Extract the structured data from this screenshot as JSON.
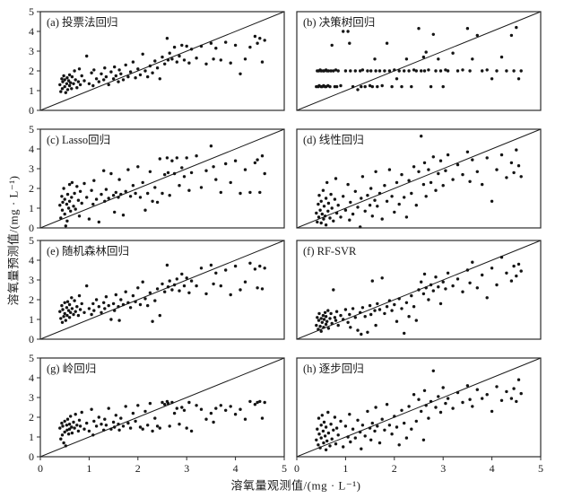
{
  "figure_title": "dissolved-oxygen-regression-comparison",
  "chart_data": {
    "type": "scatter",
    "grid": "4 rows x 2 cols",
    "xlabel": "溶氧量观测值/(mg · L⁻¹)",
    "ylabel": "溶氧量预测值/(mg · L⁻¹)",
    "xlim": [
      0,
      5
    ],
    "ylim": [
      0,
      5
    ],
    "xticks": [
      0,
      1,
      2,
      3,
      4,
      5
    ],
    "yticks": [
      0,
      1,
      2,
      3,
      4,
      5
    ],
    "grid_lines": false,
    "identity_line": true,
    "point_color": "#141414",
    "line_color": "#1a1a1a",
    "frame_color": "#2b2b2b",
    "x": [
      0.4,
      0.42,
      0.44,
      0.45,
      0.46,
      0.48,
      0.5,
      0.5,
      0.52,
      0.54,
      0.55,
      0.56,
      0.58,
      0.6,
      0.6,
      0.62,
      0.64,
      0.65,
      0.68,
      0.7,
      0.72,
      0.75,
      0.78,
      0.8,
      0.82,
      0.85,
      0.9,
      0.95,
      1.0,
      1.05,
      1.08,
      1.1,
      1.15,
      1.2,
      1.25,
      1.3,
      1.32,
      1.35,
      1.4,
      1.45,
      1.5,
      1.52,
      1.55,
      1.6,
      1.62,
      1.65,
      1.7,
      1.75,
      1.8,
      1.85,
      1.9,
      1.95,
      2.0,
      2.05,
      2.1,
      2.15,
      2.2,
      2.25,
      2.3,
      2.35,
      2.4,
      2.45,
      2.5,
      2.55,
      2.6,
      2.62,
      2.65,
      2.7,
      2.75,
      2.8,
      2.85,
      2.9,
      2.95,
      3.0,
      3.05,
      3.1,
      3.2,
      3.3,
      3.4,
      3.5,
      3.55,
      3.6,
      3.7,
      3.8,
      3.9,
      4.0,
      4.1,
      4.2,
      4.3,
      4.4,
      4.45,
      4.5,
      4.55,
      4.6
    ],
    "panels": [
      {
        "key": "a-voting",
        "label": "(a) 投票法回归",
        "y": [
          1.3,
          0.95,
          1.6,
          1.1,
          1.45,
          1.75,
          1.2,
          1.55,
          0.9,
          1.35,
          1.65,
          1.05,
          1.5,
          1.25,
          1.8,
          1.4,
          1.1,
          1.7,
          1.35,
          2.0,
          1.55,
          1.15,
          1.45,
          2.1,
          1.3,
          1.75,
          1.5,
          2.75,
          1.35,
          1.9,
          1.25,
          2.05,
          1.6,
          1.45,
          1.85,
          1.55,
          2.15,
          1.7,
          1.3,
          1.95,
          1.6,
          2.2,
          1.75,
          1.45,
          2.05,
          1.85,
          1.55,
          2.3,
          1.7,
          1.95,
          2.45,
          1.65,
          2.1,
          1.8,
          2.85,
          2.0,
          1.7,
          2.25,
          1.9,
          2.5,
          2.15,
          1.6,
          2.7,
          2.35,
          3.65,
          2.55,
          2.9,
          2.6,
          3.2,
          2.45,
          2.75,
          3.3,
          2.55,
          3.25,
          2.4,
          3.1,
          2.65,
          3.25,
          2.35,
          3.4,
          2.6,
          3.15,
          2.55,
          3.45,
          2.4,
          3.3,
          1.85,
          2.6,
          3.2,
          3.75,
          3.4,
          3.65,
          2.45,
          3.55
        ]
      },
      {
        "key": "b-decision-tree",
        "label": "(b) 决策树回归",
        "y": [
          1.2,
          2.0,
          1.2,
          2.0,
          1.25,
          2.05,
          1.2,
          2.0,
          1.2,
          2.0,
          1.25,
          2.0,
          1.2,
          2.05,
          1.2,
          2.0,
          1.25,
          2.0,
          1.2,
          2.0,
          3.3,
          2.0,
          1.2,
          2.05,
          1.2,
          2.0,
          1.25,
          4.0,
          2.0,
          4.0,
          3.4,
          2.0,
          1.2,
          2.0,
          1.05,
          2.0,
          1.2,
          2.05,
          1.2,
          2.0,
          1.25,
          2.0,
          1.2,
          2.6,
          2.0,
          1.2,
          2.0,
          1.25,
          2.0,
          3.4,
          2.0,
          1.2,
          2.05,
          1.6,
          2.0,
          1.2,
          2.0,
          2.6,
          2.0,
          1.2,
          2.05,
          2.0,
          4.15,
          2.0,
          2.7,
          2.0,
          2.95,
          2.05,
          1.2,
          3.85,
          2.0,
          2.6,
          2.0,
          1.2,
          2.05,
          2.0,
          2.9,
          2.0,
          2.05,
          4.15,
          2.0,
          2.6,
          3.8,
          2.0,
          2.05,
          1.6,
          2.0,
          2.7,
          2.0,
          3.8,
          2.0,
          4.2,
          1.6,
          2.0
        ]
      },
      {
        "key": "c-lasso",
        "label": "(c) Lasso回归",
        "y": [
          1.15,
          0.5,
          1.6,
          0.9,
          1.3,
          2.0,
          0.7,
          1.45,
          0.1,
          1.2,
          0.35,
          1.7,
          1.0,
          2.2,
          1.35,
          0.85,
          1.55,
          2.3,
          1.1,
          1.75,
          0.95,
          2.1,
          1.4,
          0.6,
          1.85,
          1.25,
          2.25,
          1.55,
          0.45,
          1.9,
          1.2,
          2.4,
          1.45,
          0.3,
          1.7,
          2.9,
          1.35,
          1.95,
          1.5,
          2.75,
          1.65,
          0.8,
          1.8,
          1.55,
          2.45,
          1.7,
          0.65,
          1.85,
          2.95,
          1.6,
          2.15,
          1.75,
          3.1,
          1.55,
          2.3,
          0.9,
          1.75,
          2.85,
          1.35,
          2.05,
          1.3,
          3.5,
          1.75,
          2.7,
          3.55,
          2.8,
          1.65,
          3.4,
          2.75,
          3.55,
          2.15,
          3.05,
          2.6,
          3.55,
          1.9,
          2.8,
          3.65,
          2.05,
          2.9,
          4.15,
          3.1,
          2.45,
          1.8,
          3.25,
          2.3,
          3.4,
          1.75,
          2.95,
          1.8,
          3.3,
          3.45,
          1.8,
          3.65,
          2.75
        ]
      },
      {
        "key": "d-linear",
        "label": "(d) 线性回归",
        "y": [
          0.75,
          0.3,
          1.2,
          0.55,
          1.65,
          0.9,
          0.25,
          1.35,
          0.7,
          1.9,
          0.45,
          1.1,
          0.6,
          1.5,
          0.15,
          2.3,
          0.85,
          1.25,
          0.5,
          1.7,
          1.0,
          0.35,
          1.45,
          2.5,
          0.75,
          1.15,
          0.55,
          1.6,
          0.9,
          2.2,
          0.4,
          1.3,
          0.7,
          1.85,
          1.05,
          0.05,
          1.5,
          2.6,
          0.85,
          1.65,
          1.15,
          2.0,
          0.6,
          1.4,
          2.85,
          1.1,
          1.75,
          0.45,
          2.15,
          1.35,
          2.95,
          1.6,
          0.8,
          2.3,
          1.2,
          2.7,
          1.55,
          0.55,
          2.4,
          1.75,
          3.1,
          1.15,
          2.85,
          4.65,
          2.2,
          3.3,
          1.6,
          2.95,
          2.3,
          3.6,
          1.9,
          2.75,
          3.4,
          2.15,
          2.9,
          3.7,
          2.45,
          3.2,
          2.7,
          3.85,
          2.35,
          3.45,
          2.85,
          2.2,
          3.55,
          1.35,
          2.95,
          3.7,
          2.55,
          3.3,
          2.8,
          3.95,
          3.15,
          2.6
        ]
      },
      {
        "key": "e-random-forest",
        "label": "(e) 随机森林回归",
        "y": [
          1.4,
          1.05,
          1.7,
          0.85,
          1.5,
          1.15,
          1.85,
          1.3,
          0.95,
          1.6,
          1.2,
          1.9,
          1.45,
          1.1,
          1.75,
          1.35,
          2.1,
          1.55,
          1.25,
          1.95,
          1.4,
          1.65,
          1.2,
          2.2,
          1.5,
          1.8,
          1.35,
          2.7,
          1.55,
          1.25,
          1.8,
          1.45,
          2.0,
          1.65,
          1.35,
          1.85,
          1.55,
          2.15,
          1.7,
          1.0,
          1.8,
          1.45,
          2.25,
          1.65,
          0.95,
          2.0,
          1.75,
          2.4,
          1.85,
          1.6,
          2.2,
          1.9,
          2.6,
          1.75,
          2.9,
          2.05,
          1.7,
          2.35,
          0.9,
          1.95,
          2.55,
          1.2,
          2.8,
          2.4,
          3.75,
          2.65,
          2.95,
          2.5,
          2.75,
          3.05,
          2.45,
          3.3,
          2.7,
          3.1,
          2.35,
          2.95,
          2.7,
          3.6,
          2.3,
          3.75,
          2.8,
          3.35,
          2.7,
          3.5,
          2.25,
          3.7,
          2.5,
          2.9,
          3.85,
          3.55,
          2.6,
          3.7,
          2.55,
          3.6
        ]
      },
      {
        "key": "f-rf-svr",
        "label": "(f) RF-SVR",
        "y": [
          0.7,
          1.1,
          0.5,
          0.95,
          1.3,
          0.65,
          1.05,
          0.4,
          0.85,
          1.2,
          0.6,
          1.0,
          1.35,
          0.75,
          1.15,
          0.9,
          1.45,
          0.55,
          1.05,
          1.3,
          0.8,
          2.5,
          1.1,
          0.95,
          1.4,
          0.7,
          1.2,
          1.0,
          1.5,
          0.85,
          1.25,
          0.6,
          1.55,
          1.1,
          0.45,
          1.35,
          0.25,
          1.6,
          1.15,
          0.35,
          1.7,
          1.25,
          2.95,
          1.45,
          0.7,
          1.8,
          1.5,
          3.1,
          1.3,
          1.65,
          1.95,
          1.45,
          1.75,
          0.9,
          2.05,
          1.55,
          0.3,
          1.85,
          1.15,
          2.2,
          1.65,
          0.95,
          2.5,
          2.9,
          2.3,
          3.3,
          2.6,
          2.0,
          2.75,
          2.45,
          3.15,
          2.65,
          1.8,
          2.9,
          2.55,
          3.35,
          2.7,
          3.05,
          2.4,
          3.5,
          2.85,
          3.9,
          2.6,
          3.25,
          2.1,
          3.6,
          2.75,
          4.15,
          3.35,
          2.95,
          3.7,
          3.2,
          3.8,
          3.45
        ]
      },
      {
        "key": "g-ridge",
        "label": "(g) 岭回归",
        "y": [
          1.45,
          0.9,
          1.7,
          1.1,
          1.55,
          0.7,
          1.8,
          1.25,
          0.55,
          1.6,
          1.35,
          1.9,
          1.15,
          1.65,
          1.4,
          2.05,
          1.5,
          1.2,
          1.75,
          1.45,
          2.15,
          1.6,
          1.3,
          1.85,
          1.55,
          2.25,
          1.4,
          1.7,
          1.3,
          2.4,
          1.1,
          1.8,
          1.55,
          2.0,
          1.65,
          1.35,
          1.9,
          1.6,
          2.45,
          1.4,
          1.75,
          1.5,
          2.1,
          1.65,
          1.35,
          1.95,
          1.55,
          2.55,
          1.7,
          1.45,
          2.2,
          1.8,
          2.6,
          1.5,
          1.4,
          2.3,
          1.6,
          2.7,
          1.3,
          1.95,
          1.55,
          1.45,
          2.75,
          2.65,
          2.8,
          2.7,
          1.55,
          2.75,
          2.2,
          2.45,
          1.65,
          2.5,
          2.35,
          1.45,
          2.75,
          1.3,
          2.6,
          2.4,
          1.9,
          2.2,
          1.75,
          2.45,
          2.6,
          2.35,
          2.55,
          2.15,
          2.4,
          1.9,
          2.8,
          2.65,
          2.75,
          2.8,
          1.95,
          2.75
        ]
      },
      {
        "key": "h-stepwise",
        "label": "(h) 逐步回归",
        "y": [
          0.85,
          1.4,
          0.6,
          1.95,
          1.15,
          0.45,
          1.6,
          0.95,
          2.1,
          1.3,
          0.7,
          1.75,
          1.05,
          0.35,
          1.5,
          0.8,
          2.25,
          1.2,
          0.55,
          1.65,
          0.9,
          1.35,
          2.0,
          0.65,
          1.45,
          1.1,
          1.8,
          0.5,
          1.55,
          1.0,
          2.15,
          0.75,
          1.4,
          0.95,
          1.85,
          1.25,
          0.4,
          1.6,
          1.05,
          2.3,
          1.45,
          0.85,
          1.7,
          1.3,
          2.5,
          1.55,
          0.7,
          1.9,
          1.35,
          2.65,
          1.6,
          1.15,
          2.05,
          1.5,
          0.6,
          2.35,
          1.7,
          0.95,
          2.55,
          1.4,
          3.15,
          1.8,
          2.9,
          2.3,
          0.85,
          3.35,
          2.6,
          1.95,
          2.8,
          4.35,
          2.5,
          3.05,
          2.25,
          3.5,
          2.7,
          2.95,
          2.45,
          3.25,
          2.75,
          3.6,
          2.9,
          2.55,
          3.4,
          2.95,
          3.15,
          2.3,
          3.55,
          2.85,
          3.3,
          2.95,
          3.45,
          2.8,
          3.9,
          3.2
        ]
      }
    ]
  }
}
